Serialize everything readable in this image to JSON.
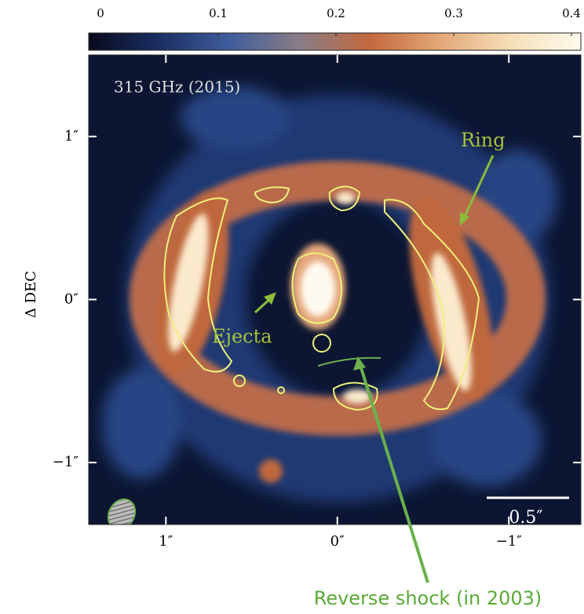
{
  "chart_data": {
    "type": "image",
    "colorbar": {
      "clim": [
        -0.01,
        0.408
      ],
      "ticks": [
        0.0,
        0.1,
        0.2,
        0.3,
        0.4
      ],
      "colormap": [
        "#070a1c",
        "#1b2f63",
        "#3f5d9c",
        "#8a7d86",
        "#c4683e",
        "#e3a878",
        "#f6dfb8",
        "#fffbee"
      ]
    },
    "xlim": [
      1.45,
      -1.42
    ],
    "ylim": [
      -1.38,
      1.5
    ],
    "xticks": [
      {
        "value": 1,
        "label": "1″"
      },
      {
        "value": 0,
        "label": "0″"
      },
      {
        "value": -1,
        "label": "−1″"
      }
    ],
    "yticks": [
      {
        "value": 1,
        "label": "1″"
      },
      {
        "value": 0,
        "label": "0″"
      },
      {
        "value": -1,
        "label": "−1″"
      }
    ],
    "ylabel": "Δ DEC",
    "annotations": {
      "band": "315 GHz (2015)",
      "ring": "Ring",
      "ejecta": "Ejecta",
      "shock": "Reverse shock (in 2003)",
      "scale": "0.5″"
    }
  }
}
